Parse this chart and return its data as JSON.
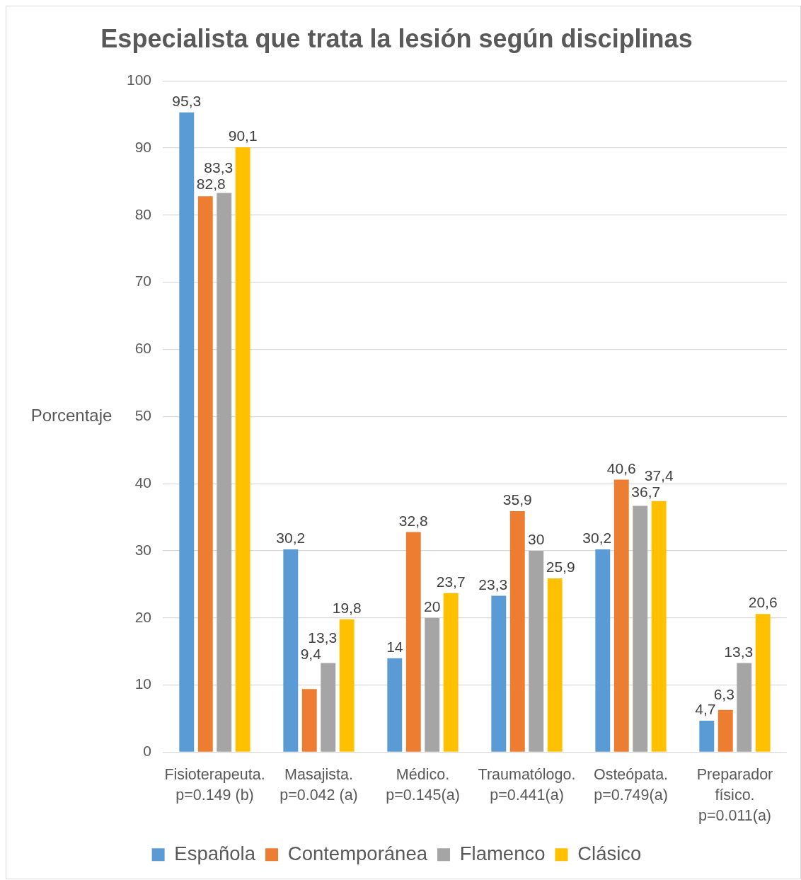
{
  "chart_data": {
    "type": "bar",
    "title": "Especialista que trata la lesión según disciplinas",
    "ylabel": "Porcentaje",
    "categories": [
      "Fisioterapeuta.\np=0.149 (b)",
      "Masajista.\np=0.042 (a)",
      "Médico.\np=0.145(a)",
      "Traumatólogo.\np=0.441(a)",
      "Osteópata.\np=0.749(a)",
      "Preparador\nfísico.\np=0.011(a)"
    ],
    "series": [
      {
        "name": "Española",
        "color": "#5b9bd5",
        "values": [
          95.3,
          30.2,
          14,
          23.3,
          30.2,
          4.7
        ],
        "value_labels": [
          "95,3",
          "30,2",
          "14",
          "23,3",
          "30,2",
          "4,7"
        ]
      },
      {
        "name": "Contemporánea",
        "color": "#ed7d31",
        "values": [
          82.8,
          9.4,
          32.8,
          35.9,
          40.6,
          6.3
        ],
        "value_labels": [
          "82,8",
          "9,4",
          "32,8",
          "35,9",
          "40,6",
          "6,3"
        ]
      },
      {
        "name": "Flamenco",
        "color": "#a5a5a5",
        "values": [
          83.3,
          13.3,
          20,
          30,
          36.7,
          13.3
        ],
        "value_labels": [
          "83,3",
          "13,3",
          "20",
          "30",
          "36,7",
          "13,3"
        ]
      },
      {
        "name": "Clásico",
        "color": "#ffc000",
        "values": [
          90.1,
          19.8,
          23.7,
          25.9,
          37.4,
          20.6
        ],
        "value_labels": [
          "90,1",
          "19,8",
          "23,7",
          "25,9",
          "37,4",
          "20,6"
        ]
      }
    ],
    "ylim": [
      0,
      100
    ],
    "yticks": [
      0,
      10,
      20,
      30,
      40,
      50,
      60,
      70,
      80,
      90,
      100
    ],
    "grid": "y",
    "legend": "bottom"
  }
}
